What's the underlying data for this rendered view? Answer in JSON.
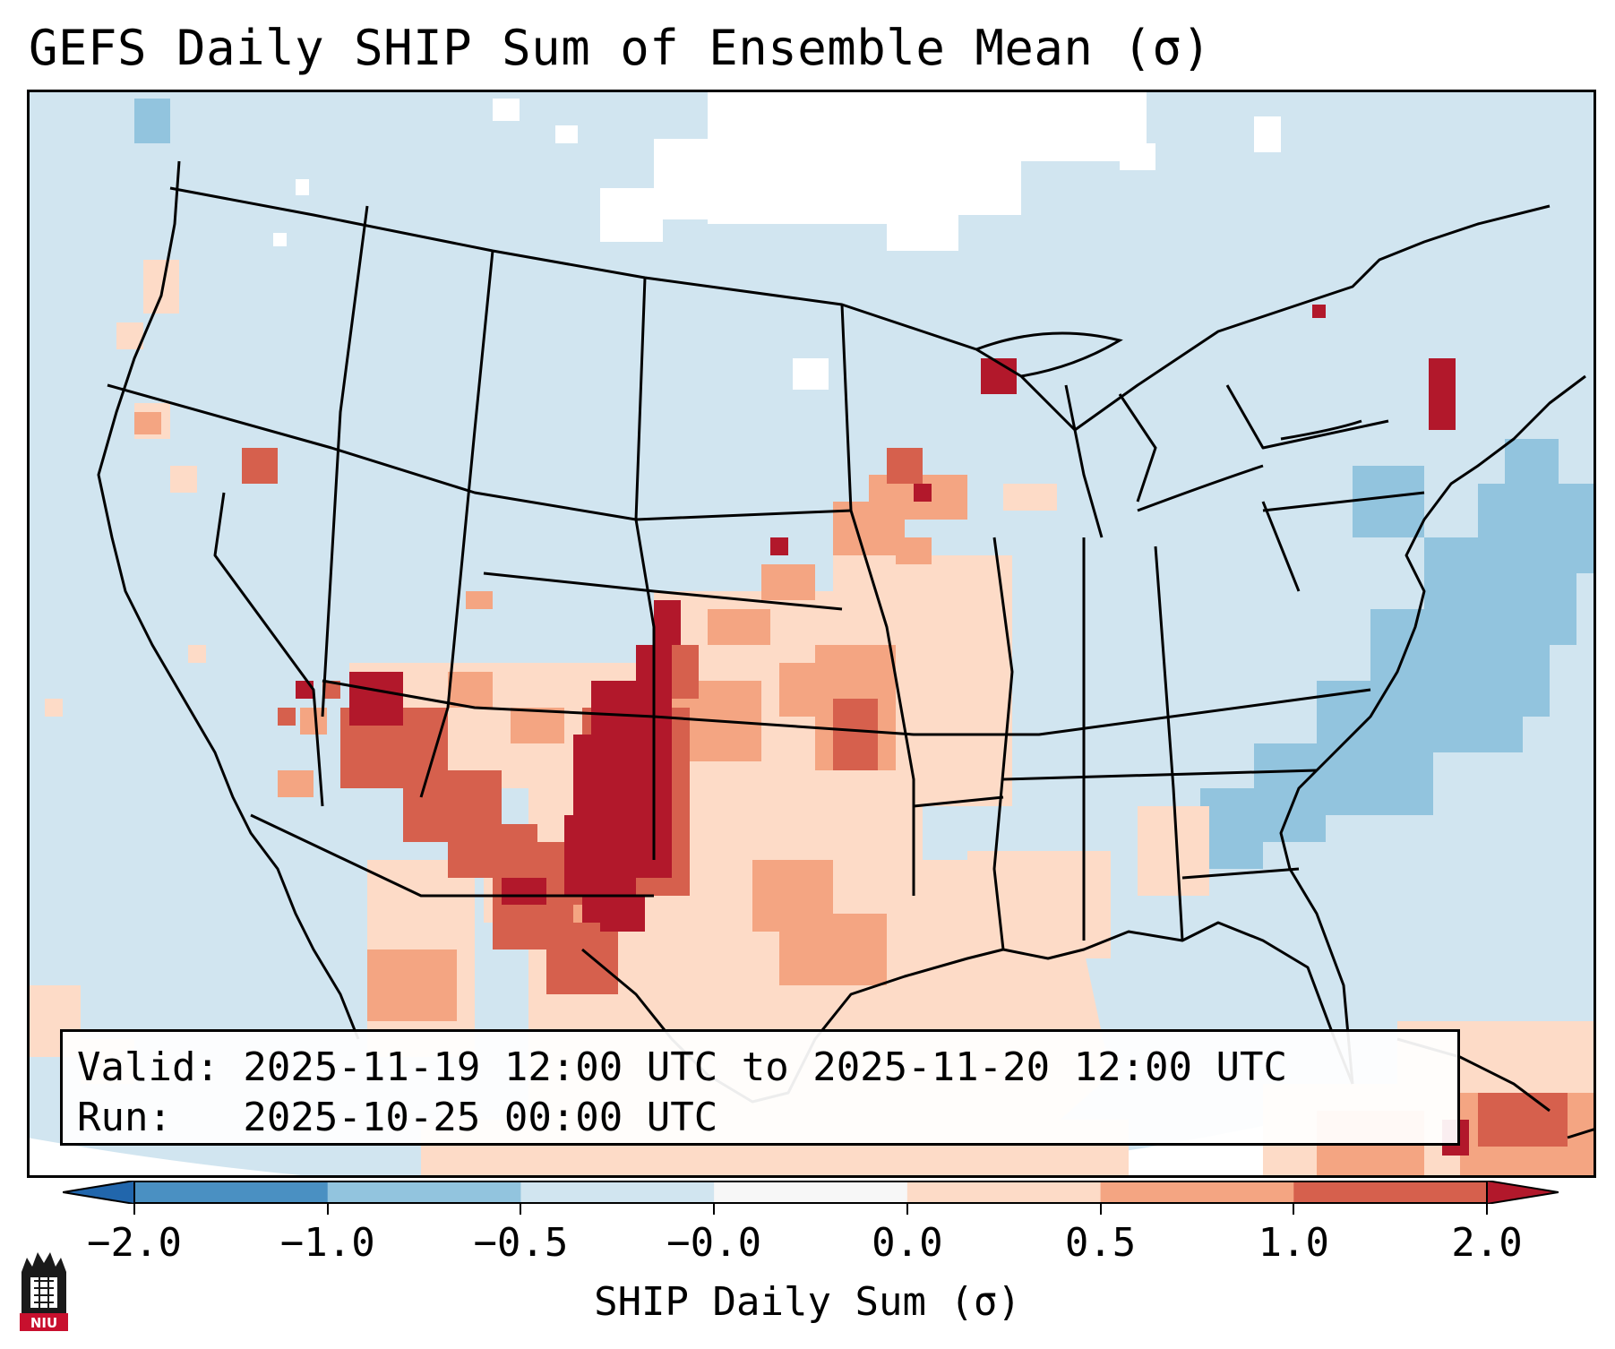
{
  "title": "GEFS Daily SHIP Sum of Ensemble Mean (σ)",
  "valid_line": "Valid: 2025-11-19 12:00 UTC to 2025-11-20 12:00 UTC",
  "run_line": "Run:   2025-10-25 00:00 UTC",
  "colorbar": {
    "label": "SHIP Daily Sum (σ)",
    "ticks": [
      "−2.0",
      "−1.0",
      "−0.5",
      "−0.0",
      "0.0",
      "0.5",
      "1.0",
      "2.0"
    ],
    "bins": [
      {
        "range": "-2.0 to -1.0",
        "color": "#4a90c2"
      },
      {
        "range": "-1.0 to -0.5",
        "color": "#92c4de"
      },
      {
        "range": "-0.5 to -0.0",
        "color": "#d1e5f0"
      },
      {
        "range": "-0.0 to 0.0",
        "color": "#f7f7f7"
      },
      {
        "range": "0.0 to 0.5",
        "color": "#fddbc7"
      },
      {
        "range": "0.5 to 1.0",
        "color": "#f4a582"
      },
      {
        "range": "1.0 to 2.0",
        "color": "#d6604d"
      }
    ],
    "extend_low_color": "#2166ac",
    "extend_high_color": "#b2182b"
  },
  "logo": {
    "text": "NIU"
  },
  "field_colors": {
    "background": "#d1e5f0",
    "neutral": "#ffffff",
    "light_red": "#fddbc7",
    "mid_red": "#f4a582",
    "red": "#d6604d",
    "dark_red": "#b2182b",
    "mid_blue": "#92c4de"
  }
}
